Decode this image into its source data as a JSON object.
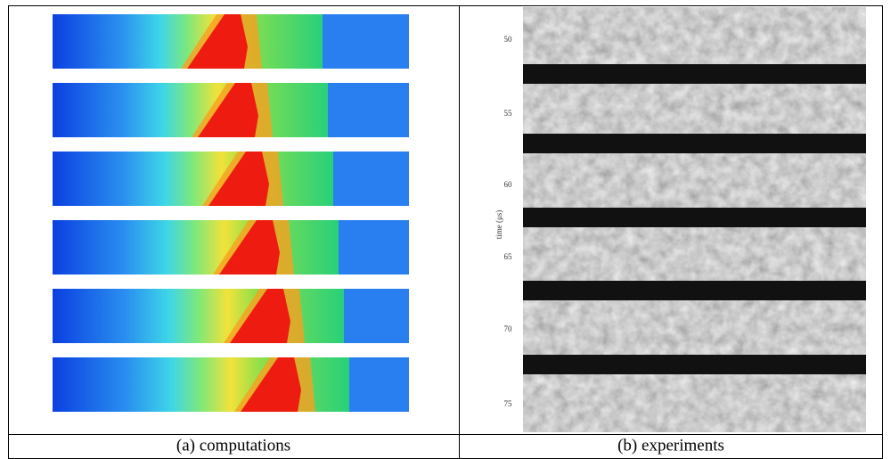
{
  "panels": [
    {
      "caption": "(a) computations"
    },
    {
      "caption": "(b) experiments",
      "axis_label": "time (μs)",
      "time_labels": [
        "50",
        "55",
        "60",
        "65",
        "70",
        "75"
      ]
    }
  ]
}
